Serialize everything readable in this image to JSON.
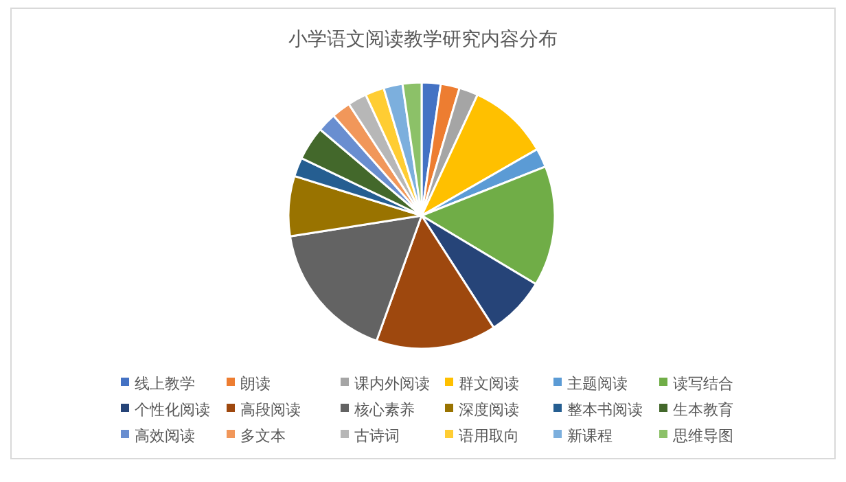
{
  "chart_data": {
    "type": "pie",
    "title": "小学语文阅读教学研究内容分布",
    "legend": "bottom",
    "categories": [
      "线上教学",
      "朗读",
      "课内外阅读",
      "群文阅读",
      "主题阅读",
      "读写结合",
      "个性化阅读",
      "高段阅读",
      "核心素养",
      "深度阅读",
      "整本书阅读",
      "生本教育",
      "高效阅读",
      "多文本",
      "古诗词",
      "语用取向",
      "新课程",
      "思维导图"
    ],
    "values": [
      2.3,
      2.3,
      2.3,
      9.8,
      2.3,
      14.6,
      7.3,
      14.6,
      17,
      7.3,
      2.3,
      4.1,
      2.3,
      2.3,
      2.3,
      2.3,
      2.3,
      2.3
    ],
    "colors": [
      "#4472c4",
      "#ed7d31",
      "#a5a5a5",
      "#ffc000",
      "#5b9bd5",
      "#70ad47",
      "#264478",
      "#9e480e",
      "#636363",
      "#997300",
      "#255e91",
      "#43682b",
      "#698ed0",
      "#f1975a",
      "#b7b7b7",
      "#ffcd33",
      "#7cafdd",
      "#8cc168"
    ]
  }
}
